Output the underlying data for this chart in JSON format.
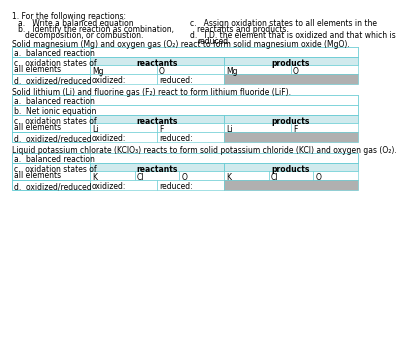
{
  "bg": "#ffffff",
  "table_border": "#5bc8d0",
  "header_bg": "#d0eaed",
  "gray_bg": "#b0b0b0",
  "white": "#ffffff",
  "font_size": 5.5,
  "section1_intro": "Solid magnesium (Mg) and oxygen gas (O₂) react to form solid magnesium oxide (MgO).",
  "section2_intro": "Solid lithium (Li) and fluorine gas (F₂) react to form lithium fluoride (LiF).",
  "section3_intro": "Liquid potassium chlorate (KClO₃) reacts to form solid potassium chloride (KCl) and oxygen gas (O₂)."
}
